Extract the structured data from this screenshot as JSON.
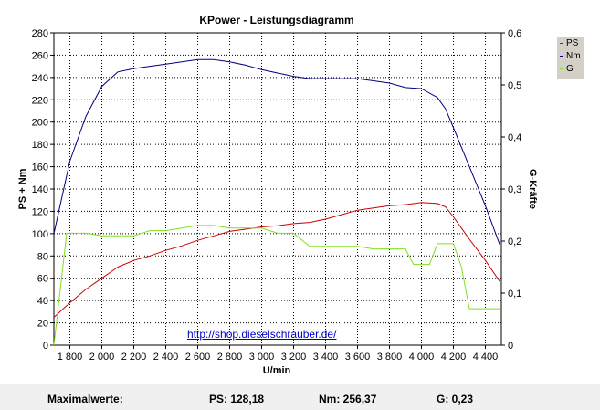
{
  "chart_data": {
    "type": "line",
    "title": "KPower - Leistungsdiagramm",
    "xlabel": "U/min",
    "ylabel": "PS + Nm",
    "y2label": "G-Kräfte",
    "xlim": [
      1700,
      4500
    ],
    "ylim": [
      0,
      280
    ],
    "y2lim": [
      0,
      0.6
    ],
    "x_ticks": [
      1800,
      2000,
      2200,
      2400,
      2600,
      2800,
      3000,
      3200,
      3400,
      3600,
      3800,
      4000,
      4200,
      4400
    ],
    "x_tick_labels": [
      "1 800",
      "2 000",
      "2 200",
      "2 400",
      "2 600",
      "2 800",
      "3 000",
      "3 200",
      "3 400",
      "3 600",
      "3 800",
      "4 000",
      "4 200",
      "4 400"
    ],
    "y_ticks": [
      0,
      20,
      40,
      60,
      80,
      100,
      120,
      140,
      160,
      180,
      200,
      220,
      240,
      260,
      280
    ],
    "y2_ticks": [
      0,
      0.1,
      0.2,
      0.3,
      0.4,
      0.5,
      0.6
    ],
    "y2_tick_labels": [
      "0",
      "0,1",
      "0,2",
      "0,3",
      "0,4",
      "0,5",
      "0,6"
    ],
    "grid": true,
    "legend_position": "right",
    "series": [
      {
        "name": "PS",
        "color": "#cc0000",
        "axis": "left",
        "x": [
          1700,
          1800,
          1900,
          2000,
          2100,
          2200,
          2300,
          2400,
          2500,
          2600,
          2700,
          2800,
          2900,
          3000,
          3100,
          3200,
          3300,
          3400,
          3500,
          3600,
          3700,
          3800,
          3900,
          4000,
          4100,
          4150,
          4200,
          4300,
          4400,
          4490
        ],
        "values": [
          25,
          38,
          50,
          60,
          70,
          76,
          80,
          85,
          89,
          94,
          98,
          102,
          104,
          106,
          107,
          109,
          110,
          113,
          117,
          121,
          123,
          125,
          126,
          128,
          127,
          124,
          115,
          95,
          76,
          57
        ]
      },
      {
        "name": "Nm",
        "color": "#000080",
        "axis": "left",
        "x": [
          1700,
          1800,
          1900,
          2000,
          2100,
          2200,
          2300,
          2400,
          2500,
          2600,
          2700,
          2800,
          2900,
          3000,
          3100,
          3200,
          3300,
          3400,
          3500,
          3600,
          3700,
          3800,
          3900,
          4000,
          4050,
          4100,
          4150,
          4200,
          4300,
          4400,
          4490
        ],
        "values": [
          100,
          165,
          205,
          232,
          245,
          248,
          250,
          252,
          254,
          256,
          256,
          254,
          251,
          247,
          244,
          241,
          239,
          239,
          239,
          239,
          237,
          235,
          231,
          230,
          226,
          222,
          212,
          195,
          160,
          125,
          90
        ]
      },
      {
        "name": "G",
        "color": "#80e020",
        "axis": "right",
        "x": [
          1700,
          1780,
          1850,
          1900,
          2000,
          2100,
          2200,
          2300,
          2400,
          2500,
          2600,
          2700,
          2800,
          2900,
          3000,
          3100,
          3200,
          3300,
          3400,
          3500,
          3600,
          3700,
          3750,
          3800,
          3850,
          3900,
          3950,
          4000,
          4050,
          4100,
          4150,
          4200,
          4250,
          4300,
          4350,
          4400,
          4490
        ],
        "values": [
          0.0,
          0.215,
          0.215,
          0.215,
          0.21,
          0.21,
          0.21,
          0.22,
          0.22,
          0.225,
          0.23,
          0.23,
          0.225,
          0.225,
          0.225,
          0.215,
          0.215,
          0.19,
          0.19,
          0.19,
          0.19,
          0.185,
          0.185,
          0.185,
          0.185,
          0.185,
          0.155,
          0.155,
          0.155,
          0.195,
          0.195,
          0.195,
          0.15,
          0.07,
          0.07,
          0.07,
          0.07
        ]
      }
    ]
  },
  "link_text": "http://shop.dieselschrauber.de/",
  "colors": {
    "ps": "#cc0000",
    "nm": "#000080",
    "g": "#80e020"
  },
  "footer": {
    "label": "Maximalwerte:",
    "ps": "PS: 128,18",
    "nm": "Nm: 256,37",
    "g": "G: 0,23"
  }
}
